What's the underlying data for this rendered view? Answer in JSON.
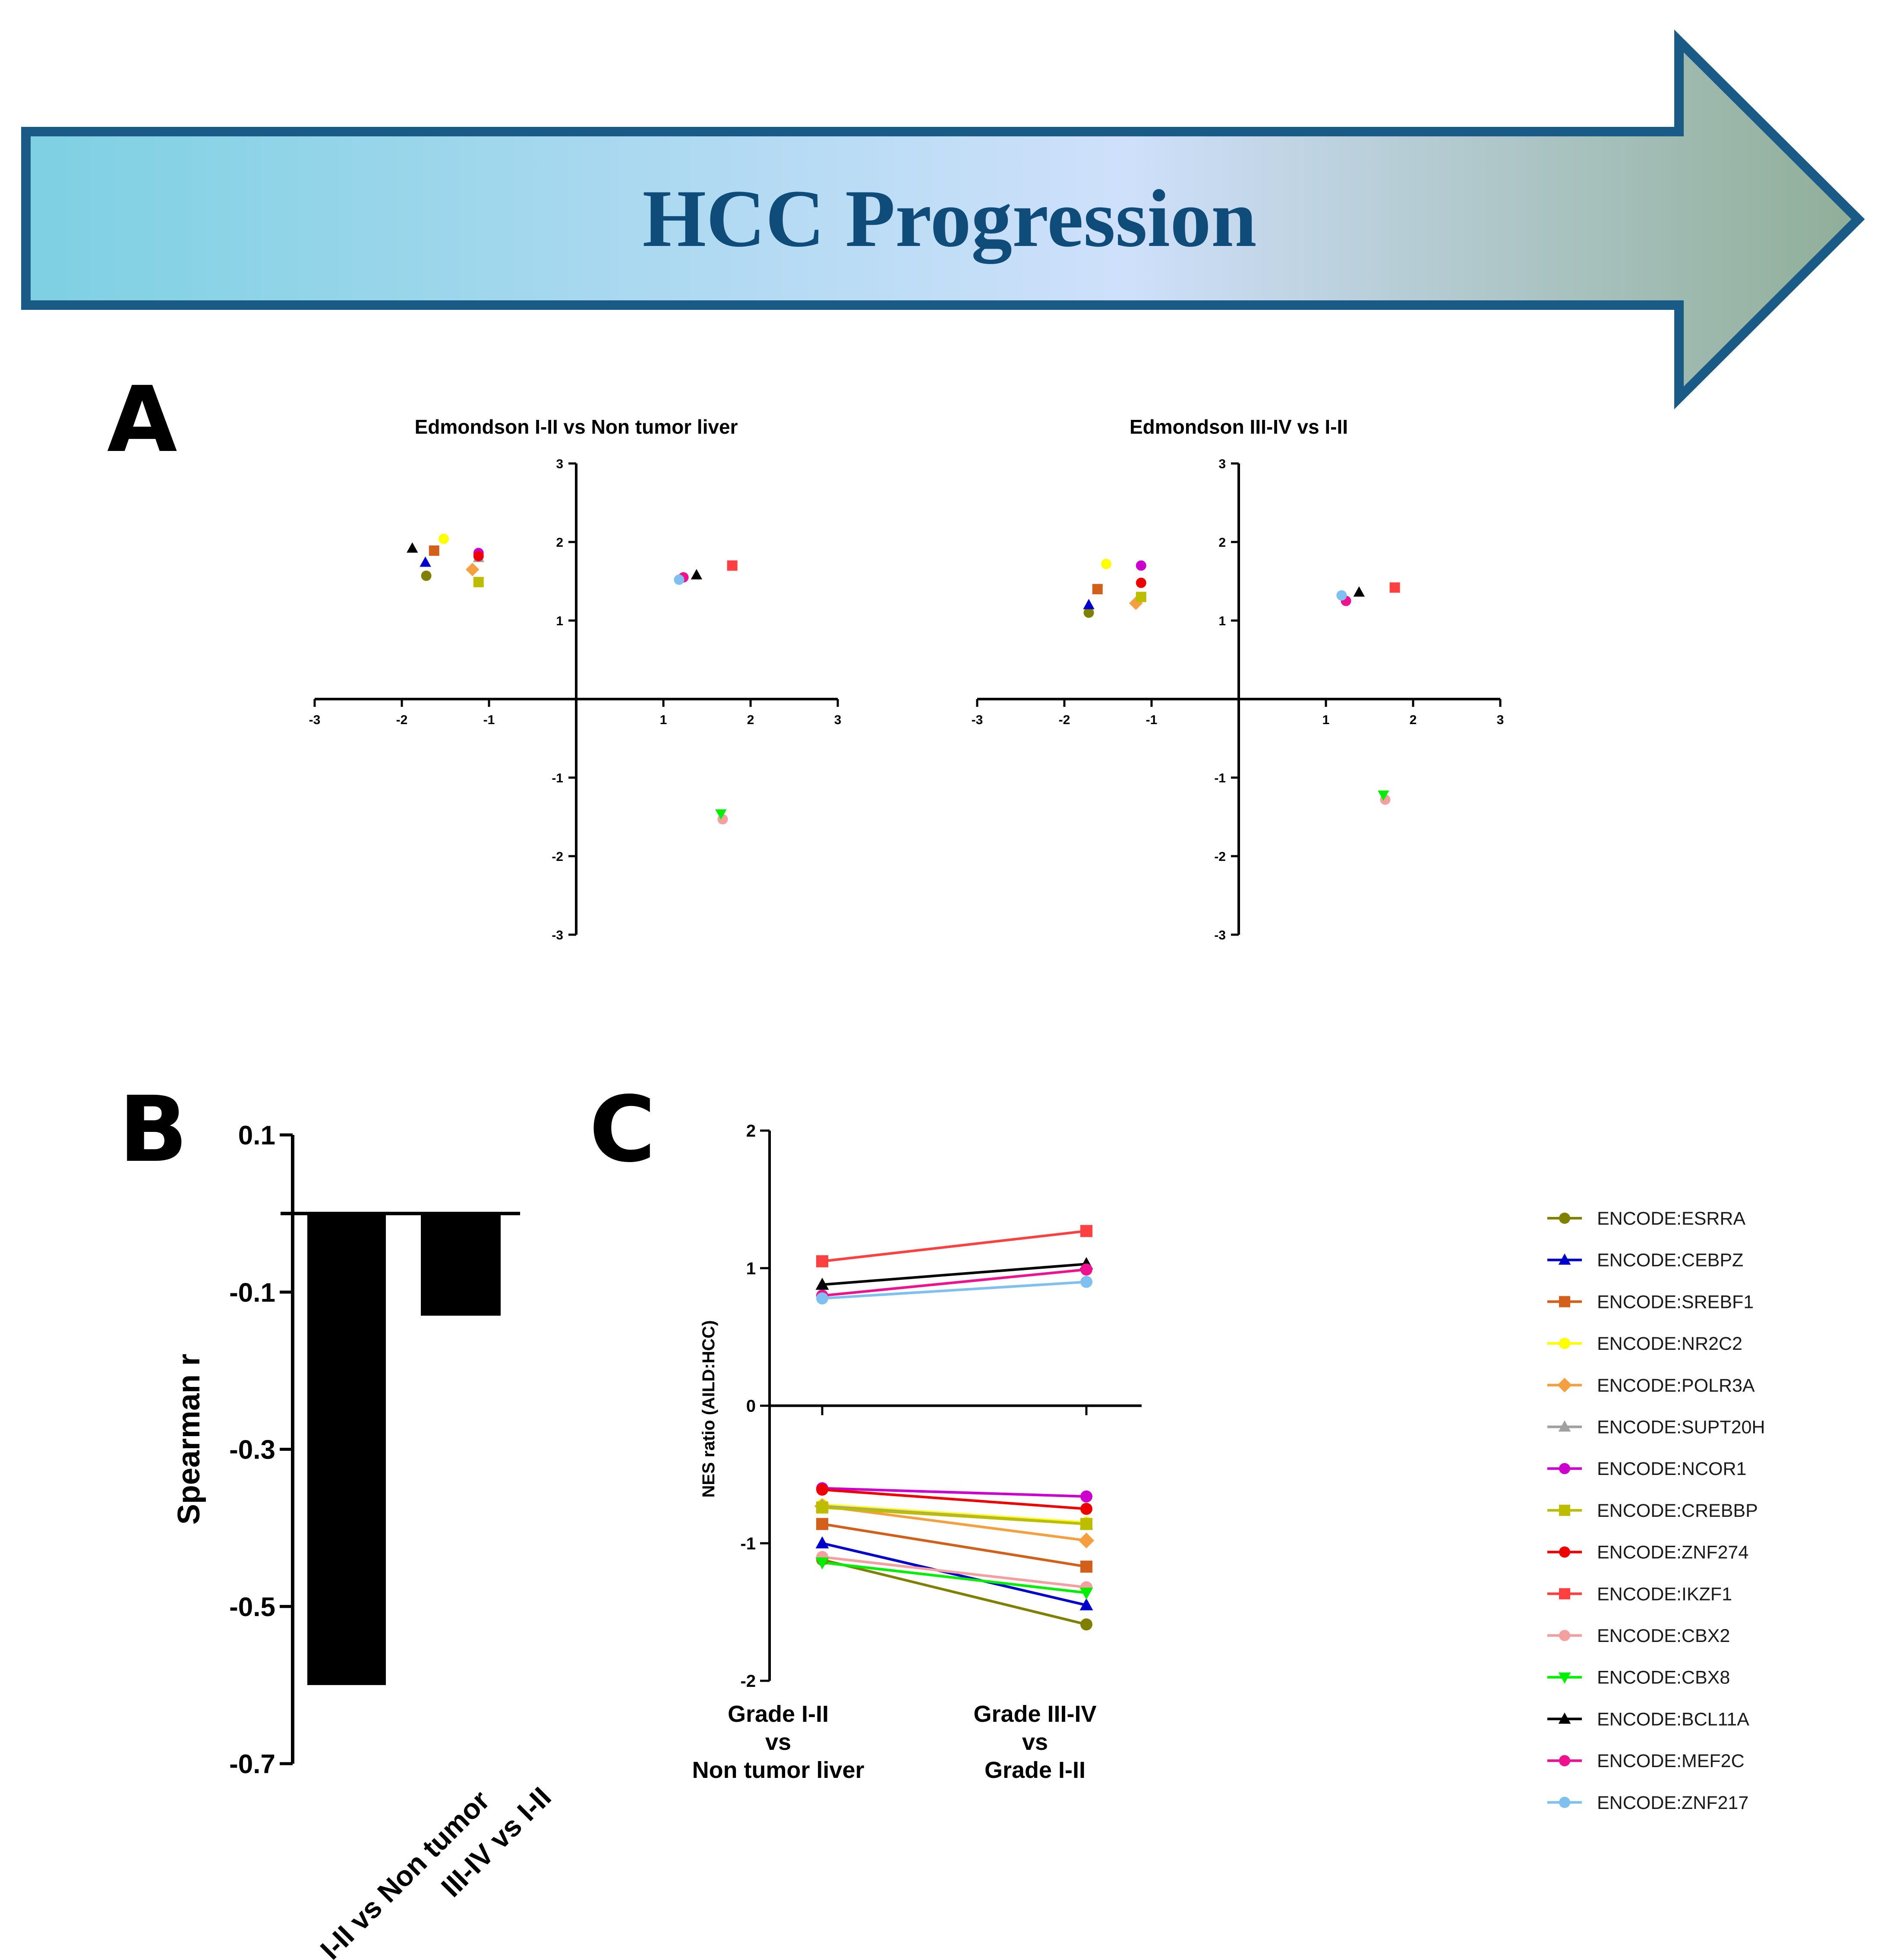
{
  "banner": {
    "title": "HCC Progression",
    "gradient": [
      "#7dd0e2",
      "#cfe0fb",
      "#8fae98"
    ],
    "stroke": "#1a5a86",
    "title_color": "#0f4c7a"
  },
  "panels": {
    "A": "A",
    "B": "B",
    "C": "C"
  },
  "series_styles": [
    {
      "name": "ENCODE:ESRRA",
      "color": "#808000",
      "marker": "circle"
    },
    {
      "name": "ENCODE:CEBPZ",
      "color": "#0000cc",
      "marker": "triangle"
    },
    {
      "name": "ENCODE:SREBF1",
      "color": "#d2601a",
      "marker": "square"
    },
    {
      "name": "ENCODE:NR2C2",
      "color": "#ffff00",
      "marker": "circle"
    },
    {
      "name": "ENCODE:POLR3A",
      "color": "#f5a040",
      "marker": "diamond"
    },
    {
      "name": "ENCODE:SUPT20H",
      "color": "#a0a0a0",
      "marker": "triangle"
    },
    {
      "name": "ENCODE:NCOR1",
      "color": "#cc00cc",
      "marker": "circle"
    },
    {
      "name": "ENCODE:CREBBP",
      "color": "#bdbd00",
      "marker": "square"
    },
    {
      "name": "ENCODE:ZNF274",
      "color": "#ee0000",
      "marker": "circle"
    },
    {
      "name": "ENCODE:IKZF1",
      "color": "#ff4040",
      "marker": "square"
    },
    {
      "name": "ENCODE:CBX2",
      "color": "#f5a0a0",
      "marker": "circle"
    },
    {
      "name": "ENCODE:CBX8",
      "color": "#00ee00",
      "marker": "triangle-down"
    },
    {
      "name": "ENCODE:BCL11A",
      "color": "#000000",
      "marker": "triangle"
    },
    {
      "name": "ENCODE:MEF2C",
      "color": "#ee1190",
      "marker": "circle"
    },
    {
      "name": "ENCODE:ZNF217",
      "color": "#80c0f0",
      "marker": "circle"
    }
  ],
  "chart_data": [
    {
      "id": "A1",
      "type": "scatter",
      "title": "Edmondson I-II vs Non tumor liver",
      "xlim": [
        -3,
        3
      ],
      "ylim": [
        -3,
        3
      ],
      "xticks": [
        "-3",
        "-2",
        "-1",
        "1",
        "2",
        "3"
      ],
      "yticks": [
        "3",
        "2",
        "1",
        "-1",
        "-2",
        "-3"
      ],
      "points": [
        {
          "series": "ENCODE:ESRRA",
          "x": -1.72,
          "y": 1.57
        },
        {
          "series": "ENCODE:CEBPZ",
          "x": -1.73,
          "y": 1.74
        },
        {
          "series": "ENCODE:SREBF1",
          "x": -1.63,
          "y": 1.89
        },
        {
          "series": "ENCODE:NR2C2",
          "x": -1.52,
          "y": 2.04
        },
        {
          "series": "ENCODE:POLR3A",
          "x": -1.19,
          "y": 1.65
        },
        {
          "series": "ENCODE:SUPT20H",
          "x": -1.12,
          "y": 1.8
        },
        {
          "series": "ENCODE:NCOR1",
          "x": -1.12,
          "y": 1.86
        },
        {
          "series": "ENCODE:CREBBP",
          "x": -1.12,
          "y": 1.49
        },
        {
          "series": "ENCODE:ZNF274",
          "x": -1.12,
          "y": 1.82
        },
        {
          "series": "ENCODE:IKZF1",
          "x": 1.79,
          "y": 1.7
        },
        {
          "series": "ENCODE:CBX2",
          "x": 1.68,
          "y": -1.53
        },
        {
          "series": "ENCODE:CBX8",
          "x": 1.66,
          "y": -1.46
        },
        {
          "series": "ENCODE:BCL11A",
          "x": -1.88,
          "y": 1.92
        },
        {
          "series": "ENCODE:BCL11A",
          "x": 1.38,
          "y": 1.58
        },
        {
          "series": "ENCODE:MEF2C",
          "x": 1.23,
          "y": 1.55
        },
        {
          "series": "ENCODE:ZNF217",
          "x": 1.18,
          "y": 1.52
        }
      ]
    },
    {
      "id": "A2",
      "type": "scatter",
      "title": "Edmondson III-IV vs I-II",
      "xlim": [
        -3,
        3
      ],
      "ylim": [
        -3,
        3
      ],
      "xticks": [
        "-3",
        "-2",
        "-1",
        "1",
        "2",
        "3"
      ],
      "yticks": [
        "3",
        "2",
        "1",
        "-1",
        "-2",
        "-3"
      ],
      "points": [
        {
          "series": "ENCODE:ESRRA",
          "x": -1.72,
          "y": 1.1
        },
        {
          "series": "ENCODE:CEBPZ",
          "x": -1.72,
          "y": 1.2
        },
        {
          "series": "ENCODE:SREBF1",
          "x": -1.62,
          "y": 1.4
        },
        {
          "series": "ENCODE:NR2C2",
          "x": -1.52,
          "y": 1.72
        },
        {
          "series": "ENCODE:POLR3A",
          "x": -1.18,
          "y": 1.22
        },
        {
          "series": "ENCODE:NCOR1",
          "x": -1.12,
          "y": 1.7
        },
        {
          "series": "ENCODE:CREBBP",
          "x": -1.12,
          "y": 1.3
        },
        {
          "series": "ENCODE:ZNF274",
          "x": -1.12,
          "y": 1.48
        },
        {
          "series": "ENCODE:IKZF1",
          "x": 1.79,
          "y": 1.42
        },
        {
          "series": "ENCODE:CBX2",
          "x": 1.68,
          "y": -1.28
        },
        {
          "series": "ENCODE:CBX8",
          "x": 1.66,
          "y": -1.22
        },
        {
          "series": "ENCODE:BCL11A",
          "x": 1.38,
          "y": 1.36
        },
        {
          "series": "ENCODE:MEF2C",
          "x": 1.23,
          "y": 1.25
        },
        {
          "series": "ENCODE:ZNF217",
          "x": 1.18,
          "y": 1.32
        }
      ]
    },
    {
      "id": "B",
      "type": "bar",
      "ylabel": "Spearman r",
      "categories": [
        "I-II vs Non tumor",
        "III-IV vs I-II"
      ],
      "values": [
        -0.6,
        -0.13
      ],
      "ylim": [
        -0.7,
        0.1
      ],
      "yticks": [
        "0.1",
        "-0.1",
        "-0.3",
        "-0.5",
        "-0.7"
      ]
    },
    {
      "id": "C",
      "type": "line",
      "ylabel": "NES ratio (AILD:HCC)",
      "categories": [
        "Grade I-II\nvs\nNon tumor liver",
        "Grade III-IV\nvs\nGrade I-II"
      ],
      "category_lines": [
        [
          "Grade I-II",
          "vs",
          "Non tumor liver"
        ],
        [
          "Grade III-IV",
          "vs",
          "Grade I-II"
        ]
      ],
      "ylim": [
        -2,
        2
      ],
      "yticks": [
        "2",
        "1",
        "0",
        "-1",
        "-2"
      ],
      "series": [
        {
          "name": "ENCODE:ESRRA",
          "values": [
            -1.12,
            -1.59
          ]
        },
        {
          "name": "ENCODE:CEBPZ",
          "values": [
            -1.0,
            -1.45
          ]
        },
        {
          "name": "ENCODE:SREBF1",
          "values": [
            -0.86,
            -1.17
          ]
        },
        {
          "name": "ENCODE:NR2C2",
          "values": [
            -0.72,
            -0.85
          ]
        },
        {
          "name": "ENCODE:POLR3A",
          "values": [
            -0.73,
            -0.98
          ]
        },
        {
          "name": "ENCODE:SUPT20H",
          "values": [
            -0.73,
            -0.86
          ]
        },
        {
          "name": "ENCODE:NCOR1",
          "values": [
            -0.6,
            -0.66
          ]
        },
        {
          "name": "ENCODE:CREBBP",
          "values": [
            -0.74,
            -0.86
          ]
        },
        {
          "name": "ENCODE:ZNF274",
          "values": [
            -0.61,
            -0.75
          ]
        },
        {
          "name": "ENCODE:IKZF1",
          "values": [
            1.05,
            1.27
          ]
        },
        {
          "name": "ENCODE:CBX2",
          "values": [
            -1.1,
            -1.32
          ]
        },
        {
          "name": "ENCODE:CBX8",
          "values": [
            -1.14,
            -1.36
          ]
        },
        {
          "name": "ENCODE:BCL11A",
          "values": [
            0.88,
            1.03
          ]
        },
        {
          "name": "ENCODE:MEF2C",
          "values": [
            0.8,
            0.99
          ]
        },
        {
          "name": "ENCODE:ZNF217",
          "values": [
            0.78,
            0.9
          ]
        }
      ],
      "legend": [
        "ENCODE:ESRRA",
        "ENCODE:CEBPZ",
        "ENCODE:SREBF1",
        "ENCODE:NR2C2",
        "ENCODE:POLR3A",
        "ENCODE:SUPT20H",
        "ENCODE:NCOR1",
        "ENCODE:CREBBP",
        "ENCODE:ZNF274",
        "ENCODE:IKZF1",
        "ENCODE:CBX2",
        "ENCODE:CBX8",
        "ENCODE:BCL11A",
        "ENCODE:MEF2C",
        "ENCODE:ZNF217"
      ]
    }
  ]
}
